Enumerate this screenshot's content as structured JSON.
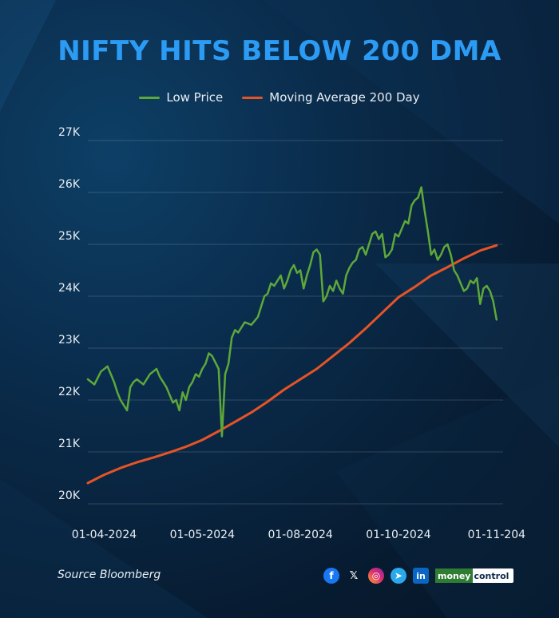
{
  "chart_data": {
    "type": "line",
    "title": "NIFTY HITS BELOW 200 DMA",
    "xlabel": "",
    "ylabel": "",
    "ylim": [
      20000,
      27000
    ],
    "yticks": [
      20000,
      21000,
      22000,
      23000,
      24000,
      25000,
      26000,
      27000
    ],
    "ytick_labels": [
      "20K",
      "21K",
      "22K",
      "23K",
      "24K",
      "25K",
      "26K",
      "27K"
    ],
    "xtick_labels": [
      "01-04-2024",
      "01-05-2024",
      "01-08-2024",
      "01-10-2024",
      "01-11-204"
    ],
    "xtick_positions": [
      5,
      35,
      65,
      95,
      125
    ],
    "x_count": 128,
    "grid": true,
    "legend": "top-center",
    "series": [
      {
        "name": "Low Price",
        "color": "#5ea83a",
        "x": [
          0,
          2,
          4,
          6,
          7,
          8,
          9,
          10,
          12,
          13,
          14,
          15,
          16,
          17,
          18,
          19,
          20,
          21,
          22,
          23,
          24,
          25,
          26,
          27,
          28,
          29,
          30,
          31,
          32,
          33,
          34,
          35,
          36,
          37,
          38,
          40,
          41,
          42,
          43,
          44,
          45,
          46,
          47,
          48,
          50,
          52,
          53,
          54,
          55,
          56,
          57,
          58,
          59,
          60,
          61,
          62,
          63,
          64,
          65,
          66,
          67,
          68,
          69,
          70,
          71,
          72,
          73,
          74,
          75,
          76,
          77,
          78,
          79,
          80,
          81,
          82,
          83,
          84,
          85,
          86,
          87,
          88,
          89,
          90,
          91,
          92,
          93,
          94,
          95,
          96,
          97,
          98,
          99,
          100,
          101,
          102,
          103,
          104,
          105,
          106,
          107,
          108,
          109,
          110,
          111,
          112,
          113,
          114,
          115,
          116,
          117,
          118,
          119,
          120,
          121,
          122,
          123,
          124,
          125
        ],
        "values": [
          22400,
          22300,
          22550,
          22650,
          22500,
          22350,
          22150,
          22000,
          21800,
          22250,
          22350,
          22400,
          22350,
          22300,
          22400,
          22500,
          22550,
          22600,
          22450,
          22350,
          22250,
          22100,
          21950,
          22000,
          21800,
          22150,
          22000,
          22250,
          22350,
          22500,
          22450,
          22600,
          22700,
          22900,
          22850,
          22600,
          21300,
          22500,
          22700,
          23200,
          23350,
          23300,
          23400,
          23500,
          23450,
          23600,
          23800,
          24000,
          24050,
          24250,
          24200,
          24300,
          24400,
          24150,
          24300,
          24500,
          24600,
          24450,
          24500,
          24150,
          24400,
          24600,
          24850,
          24900,
          24800,
          23900,
          24000,
          24200,
          24100,
          24300,
          24150,
          24050,
          24400,
          24550,
          24650,
          24700,
          24900,
          24950,
          24800,
          25000,
          25200,
          25250,
          25100,
          25200,
          24750,
          24800,
          24900,
          25200,
          25150,
          25300,
          25450,
          25400,
          25750,
          25850,
          25900,
          26100,
          25650,
          25250,
          24800,
          24900,
          24700,
          24800,
          24950,
          25000,
          24800,
          24500,
          24400,
          24250,
          24100,
          24150,
          24300,
          24250,
          24350,
          23850,
          24150,
          24200,
          24100,
          23900,
          23550
        ]
      },
      {
        "name": "Moving Average 200 Day",
        "color": "#e65426",
        "x": [
          0,
          5,
          10,
          15,
          20,
          25,
          30,
          35,
          40,
          45,
          50,
          55,
          60,
          65,
          70,
          75,
          80,
          85,
          90,
          95,
          100,
          105,
          110,
          115,
          120,
          125
        ],
        "values": [
          20400,
          20560,
          20690,
          20800,
          20890,
          20990,
          21100,
          21230,
          21400,
          21580,
          21760,
          21970,
          22200,
          22400,
          22600,
          22850,
          23100,
          23380,
          23680,
          23980,
          24180,
          24400,
          24560,
          24730,
          24880,
          24980
        ]
      }
    ]
  },
  "footer": {
    "source": "Source Bloomberg",
    "brand_a": "money",
    "brand_b": "control"
  },
  "social_icons": [
    "facebook-icon",
    "x-icon",
    "instagram-icon",
    "telegram-icon",
    "linkedin-icon"
  ],
  "colors": {
    "title": "#2b9bf4",
    "grid": "#ffffff",
    "text": "#e9eef3"
  }
}
